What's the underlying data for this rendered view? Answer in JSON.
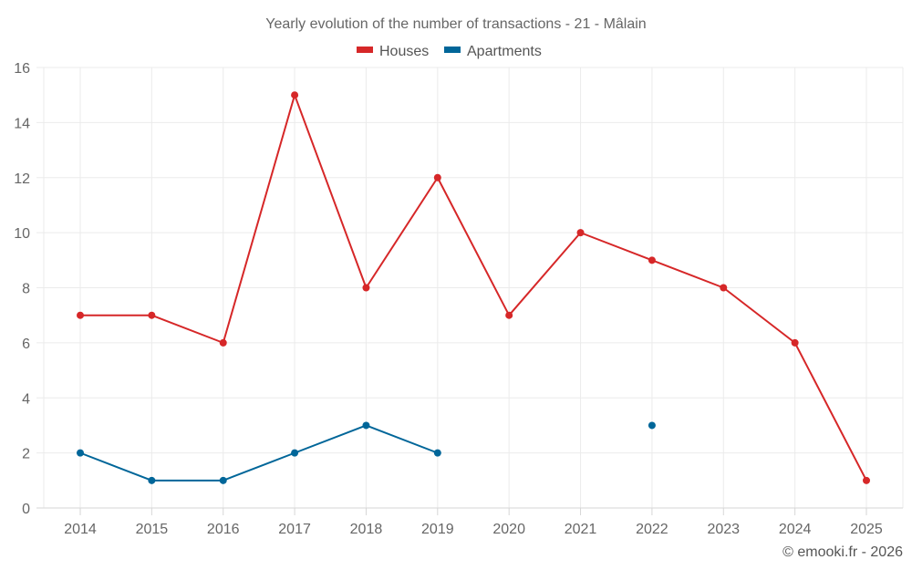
{
  "chart_data": {
    "type": "line",
    "title": "Yearly evolution of the number of transactions - 21 - Mâlain",
    "xlabel": "",
    "ylabel": "",
    "categories": [
      "2014",
      "2015",
      "2016",
      "2017",
      "2018",
      "2019",
      "2020",
      "2021",
      "2022",
      "2023",
      "2024",
      "2025"
    ],
    "ylim": [
      0,
      16
    ],
    "yticks": [
      0,
      2,
      4,
      6,
      8,
      10,
      12,
      14,
      16
    ],
    "grid": true,
    "legend_position": "top-center",
    "series": [
      {
        "name": "Houses",
        "color": "#d62728",
        "values": [
          7,
          7,
          6,
          15,
          8,
          12,
          7,
          10,
          9,
          8,
          6,
          1
        ]
      },
      {
        "name": "Apartments",
        "color": "#006699",
        "values": [
          2,
          1,
          1,
          2,
          3,
          2,
          null,
          null,
          3,
          null,
          null,
          null
        ]
      }
    ],
    "credit": "© emooki.fr - 2026"
  }
}
